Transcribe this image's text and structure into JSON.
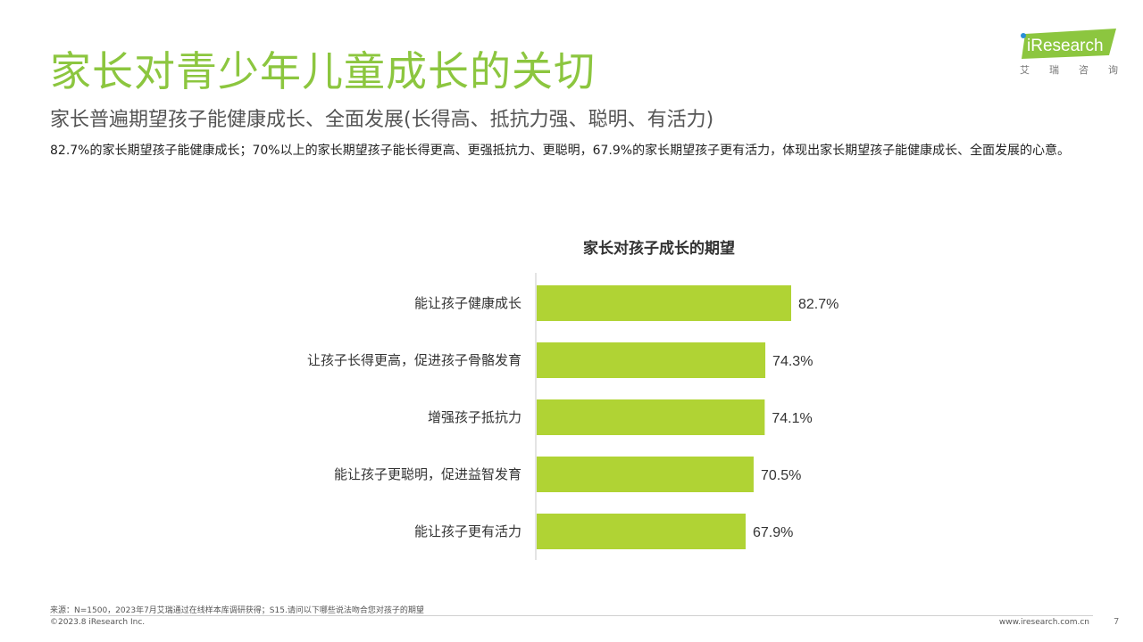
{
  "slide": {
    "title": "家长对青少年儿童成长的关切",
    "subtitle": "家长普遍期望孩子能健康成长、全面发展(长得高、抵抗力强、聪明、有活力)",
    "summary": "82.7%的家长期望孩子能健康成长；70%以上的家长期望孩子能长得更高、更强抵抗力、更聪明，67.9%的家长期望孩子更有活力，体现出家长期望孩子能健康成长、全面发展的心意。"
  },
  "logo": {
    "brand": "iResearch",
    "chars": [
      "艾",
      "瑞",
      "咨",
      "询"
    ]
  },
  "chart_data": {
    "type": "bar",
    "orientation": "horizontal",
    "title": "家长对孩子成长的期望",
    "categories": [
      "能让孩子健康成长",
      "让孩子长得更高，促进孩子骨骼发育",
      "增强孩子抵抗力",
      "能让孩子更聪明，促进益智发育",
      "能让孩子更有活力"
    ],
    "values": [
      82.7,
      74.3,
      74.1,
      70.5,
      67.9
    ],
    "value_labels": [
      "82.7%",
      "74.3%",
      "74.1%",
      "70.5%",
      "67.9%"
    ],
    "unit": "%",
    "xlim": [
      0,
      100
    ],
    "grid": false,
    "bar_color": "#b0d334"
  },
  "footer": {
    "source": "来源：N=1500，2023年7月艾瑞通过在线样本库调研获得；S15.请问以下哪些说法吻合您对孩子的期望",
    "copyright": "©2023.8 iResearch Inc.",
    "website": "www.iresearch.com.cn",
    "page": "7"
  },
  "colors": {
    "title_green": "#8cc63f",
    "bar": "#b0d334",
    "logo_green": "#8cc63f"
  }
}
